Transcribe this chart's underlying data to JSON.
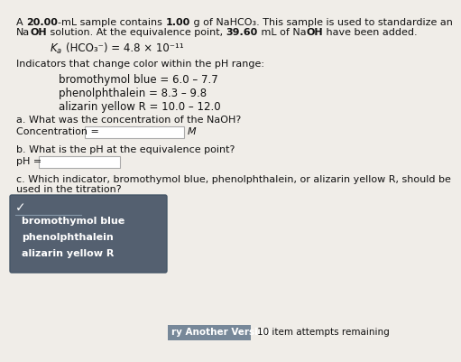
{
  "background_color": "#f0ede8",
  "text_color": "#111111",
  "title_line1_segments": [
    [
      "A ",
      false
    ],
    [
      "20.00",
      true
    ],
    [
      "-mL sample contains ",
      false
    ],
    [
      "1.00",
      true
    ],
    [
      " g of NaHCO₃. This sample is used to standardize an",
      false
    ]
  ],
  "title_line2_segments": [
    [
      "Na",
      false
    ],
    [
      "OH",
      true
    ],
    [
      " solution. At the equivalence point, ",
      false
    ],
    [
      "39.60",
      true
    ],
    [
      " mL of Na",
      false
    ],
    [
      "OH",
      true
    ],
    [
      " have been added.",
      false
    ]
  ],
  "ka_text": "K",
  "ka_sub": "a",
  "ka_rest": "(HCO₃⁻) = 4.8 × 10",
  "ka_sup": "⁻¹¹",
  "indicators_label": "Indicators that change color within the pH range:",
  "indicator1": "bromothymol blue = 6.0 – 7.7",
  "indicator2": "phenolphthalein = 8.3 – 9.8",
  "indicator3": "alizarin yellow R = 10.0 – 12.0",
  "qa_label": "a. What was the concentration of the NaOH?",
  "conc_label": "Concentration = ",
  "conc_unit": "M",
  "qb_label": "b. What is the pH at the equivalence point?",
  "ph_label": "pH = ",
  "qc_line1": "c. Which indicator, bromothymol blue, phenolphthalein, or alizarin yellow R, should be",
  "qc_line2": "used in the titration?",
  "dropdown_items": [
    "bromothymol blue",
    "phenolphthalein",
    "alizarin yellow R"
  ],
  "dropdown_bg": "#546070",
  "dropdown_border": "#667788",
  "dropdown_text_color": "#ffffff",
  "check_mark": "✓",
  "button_label": "ry Another Version",
  "button_bg": "#778899",
  "footer_text": "10 item attempts remaining",
  "font_size": 8.0,
  "font_size_ka": 8.5,
  "font_size_indicators": 8.5,
  "font_size_dropdown": 8.0,
  "input_box_color": "#ffffff",
  "input_border_color": "#aaaaaa"
}
